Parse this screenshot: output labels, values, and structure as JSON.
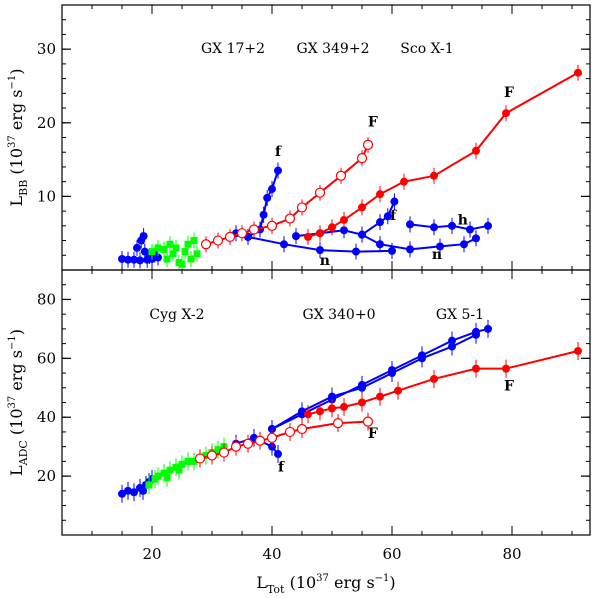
{
  "chart_data": {
    "type": "scatter",
    "x_axis": {
      "label": "L",
      "label_sub": "Tot",
      "label_rest": " (10",
      "label_sup": "37",
      "label_units": " erg s",
      "label_units_sup": "−1",
      "label_close": ")",
      "range": [
        5,
        93
      ],
      "ticks": [
        20,
        40,
        60,
        80
      ]
    },
    "panels": [
      {
        "id": "top",
        "ylabel": "L",
        "ylabel_sub": "BB",
        "ylabel_rest": " (10",
        "ylabel_sup": "37",
        "ylabel_units": " erg s",
        "ylabel_units_sup": "−1",
        "ylabel_close": ")",
        "yrange": [
          0,
          36
        ],
        "yticks": [
          10,
          20,
          30
        ],
        "source_labels": [
          "GX 17+2",
          "GX 349+2",
          "Sco X-1"
        ],
        "annotations": [
          {
            "text": "f",
            "x": 41,
            "y": 15.5
          },
          {
            "text": "F",
            "x": 56.8,
            "y": 19.5
          },
          {
            "text": "F",
            "x": 79.5,
            "y": 23.5
          },
          {
            "text": "f",
            "x": 60.2,
            "y": 6.8
          },
          {
            "text": "h",
            "x": 71.8,
            "y": 6.2
          },
          {
            "text": "n",
            "x": 48.8,
            "y": 0.7
          },
          {
            "text": "n",
            "x": 67.5,
            "y": 1.5
          }
        ],
        "series": [
          {
            "name": "Cyg X-2",
            "color": "#0000ff",
            "marker": "filled-circle",
            "connected": false,
            "points": [
              [
                15,
                1.5
              ],
              [
                16,
                1.4
              ],
              [
                17,
                1.4
              ],
              [
                18,
                1.3
              ],
              [
                17.5,
                3
              ],
              [
                18.2,
                4
              ],
              [
                18.6,
                4.6
              ],
              [
                18.8,
                2.5
              ],
              [
                19.2,
                1.4
              ],
              [
                20,
                1.5
              ],
              [
                20.5,
                2.1
              ],
              [
                21,
                1.7
              ],
              [
                19.6,
                1.9
              ]
            ]
          },
          {
            "name": "GX 340+0",
            "color": "#00ff00",
            "marker": "filled-square",
            "connected": false,
            "points": [
              [
                20,
                2.5
              ],
              [
                21,
                3
              ],
              [
                22,
                2.8
              ],
              [
                22.5,
                1.5
              ],
              [
                23,
                3.5
              ],
              [
                24,
                3
              ],
              [
                24.5,
                1
              ],
              [
                25,
                0.8
              ],
              [
                25.5,
                2.5
              ],
              [
                26,
                3.5
              ],
              [
                27,
                4
              ],
              [
                26.5,
                1.5
              ],
              [
                27.5,
                2.2
              ],
              [
                23.5,
                2.2
              ]
            ]
          },
          {
            "name": "GX 17+2",
            "color": "#0000ff",
            "marker": "filled-circle",
            "connected": true,
            "points": [
              [
                34,
                5
              ],
              [
                36,
                4.5
              ],
              [
                38,
                5.5
              ],
              [
                38.6,
                7.5
              ],
              [
                39.2,
                9.8
              ],
              [
                40,
                11
              ],
              [
                41,
                13.5
              ]
            ]
          },
          {
            "name": "GX 17+2 normal branch",
            "color": "#0000ff",
            "marker": "filled-circle",
            "connected": true,
            "points": [
              [
                36,
                4.5
              ],
              [
                42,
                3.5
              ],
              [
                48,
                2.7
              ],
              [
                54,
                2.5
              ],
              [
                60,
                2.6
              ]
            ]
          },
          {
            "name": "GX 349+2",
            "color": "#0000ff",
            "marker": "filled-circle",
            "connected": true,
            "points": [
              [
                44,
                4.6
              ],
              [
                48,
                5
              ],
              [
                52,
                5.4
              ],
              [
                55,
                4.8
              ],
              [
                58,
                6.5
              ],
              [
                59.3,
                7.3
              ],
              [
                60.4,
                9.3
              ]
            ]
          },
          {
            "name": "GX 349+2 normal branch",
            "color": "#0000ff",
            "marker": "filled-circle",
            "connected": true,
            "points": [
              [
                55,
                4.8
              ],
              [
                58,
                3.5
              ],
              [
                63,
                2.8
              ],
              [
                68,
                3.2
              ],
              [
                72,
                3.5
              ],
              [
                74,
                4.3
              ]
            ]
          },
          {
            "name": "GX 349+2 horizontal branch",
            "color": "#0000ff",
            "marker": "filled-circle",
            "connected": true,
            "points": [
              [
                63,
                6.2
              ],
              [
                67,
                5.8
              ],
              [
                70,
                6
              ],
              [
                73,
                5.5
              ],
              [
                76,
                6
              ]
            ]
          },
          {
            "name": "GX 340+0",
            "color": "#ff0000",
            "marker": "open-circle",
            "connected": true,
            "points": [
              [
                29,
                3.5
              ],
              [
                31,
                4
              ],
              [
                33,
                4.5
              ],
              [
                35,
                5
              ],
              [
                37,
                5.5
              ],
              [
                40,
                6
              ],
              [
                43,
                7
              ],
              [
                45,
                8.5
              ],
              [
                48,
                10.5
              ],
              [
                51.5,
                12.8
              ],
              [
                55,
                15.2
              ],
              [
                56,
                17
              ]
            ]
          },
          {
            "name": "GX 5-1",
            "color": "#ff0000",
            "marker": "filled-circle",
            "connected": true,
            "points": [
              [
                46,
                4.5
              ],
              [
                48,
                5
              ],
              [
                50,
                5.8
              ],
              [
                52,
                6.8
              ],
              [
                55,
                8.5
              ],
              [
                58,
                10.3
              ],
              [
                62,
                12
              ],
              [
                67,
                12.8
              ],
              [
                74,
                16.2
              ],
              [
                79,
                21.3
              ],
              [
                91,
                26.8
              ]
            ]
          }
        ]
      },
      {
        "id": "bottom",
        "ylabel": "L",
        "ylabel_sub": "ADC",
        "ylabel_rest": " (10",
        "ylabel_sup": "37",
        "ylabel_units": " erg s",
        "ylabel_units_sup": "−1",
        "ylabel_close": ")",
        "yrange": [
          0,
          90
        ],
        "yticks": [
          20,
          40,
          60,
          80
        ],
        "source_labels": [
          "Cyg X-2",
          "GX 340+0",
          "GX 5-1"
        ],
        "annotations": [
          {
            "text": "F",
            "x": 79.5,
            "y": 49
          },
          {
            "text": "F",
            "x": 56.8,
            "y": 33
          },
          {
            "text": "f",
            "x": 41.5,
            "y": 21.5
          }
        ],
        "series": [
          {
            "name": "Cyg X-2",
            "color": "#0000ff",
            "marker": "filled-circle",
            "connected": false,
            "points": [
              [
                15,
                14
              ],
              [
                16,
                15
              ],
              [
                17,
                14.5
              ],
              [
                18,
                16
              ],
              [
                19,
                17
              ],
              [
                19.5,
                18
              ],
              [
                18.5,
                15
              ],
              [
                20,
                19
              ]
            ]
          },
          {
            "name": "GX 340+0",
            "color": "#00ff00",
            "marker": "filled-square",
            "connected": false,
            "points": [
              [
                19.5,
                17
              ],
              [
                20.5,
                19
              ],
              [
                21,
                20
              ],
              [
                22,
                21
              ],
              [
                23,
                22
              ],
              [
                24,
                23
              ],
              [
                25,
                24
              ],
              [
                26,
                25
              ],
              [
                27,
                25
              ],
              [
                28,
                26
              ],
              [
                29,
                27
              ],
              [
                30,
                28
              ],
              [
                31,
                29
              ],
              [
                32,
                30
              ],
              [
                22.5,
                19.5
              ],
              [
                24.5,
                22
              ]
            ]
          },
          {
            "name": "GX 17+2",
            "color": "#0000ff",
            "marker": "filled-circle",
            "connected": true,
            "points": [
              [
                34,
                31
              ],
              [
                37,
                33
              ],
              [
                40,
                30
              ],
              [
                41,
                27.5
              ]
            ]
          },
          {
            "name": "GX 349+2 upper",
            "color": "#0000ff",
            "marker": "filled-circle",
            "connected": true,
            "points": [
              [
                40,
                36
              ],
              [
                45,
                41
              ],
              [
                50,
                46
              ],
              [
                55,
                51
              ],
              [
                60,
                56
              ],
              [
                65,
                61
              ],
              [
                70,
                66
              ],
              [
                74,
                69
              ],
              [
                76,
                70
              ]
            ]
          },
          {
            "name": "GX 349+2 lower",
            "color": "#0000ff",
            "marker": "filled-circle",
            "connected": true,
            "points": [
              [
                40,
                36
              ],
              [
                45,
                42
              ],
              [
                50,
                47
              ],
              [
                55,
                50
              ],
              [
                60,
                55
              ],
              [
                65,
                60
              ],
              [
                70,
                64
              ],
              [
                74,
                68
              ]
            ]
          },
          {
            "name": "GX 340+0",
            "color": "#ff0000",
            "marker": "open-circle",
            "connected": true,
            "points": [
              [
                28,
                26
              ],
              [
                30,
                27
              ],
              [
                32,
                28
              ],
              [
                34,
                30
              ],
              [
                36,
                31
              ],
              [
                38,
                32
              ],
              [
                40,
                33
              ],
              [
                43,
                35
              ],
              [
                45,
                36
              ],
              [
                51,
                38
              ],
              [
                56,
                38.5
              ]
            ]
          },
          {
            "name": "GX 5-1",
            "color": "#ff0000",
            "marker": "filled-circle",
            "connected": true,
            "points": [
              [
                46,
                41
              ],
              [
                48,
                42
              ],
              [
                50,
                43
              ],
              [
                52,
                43.5
              ],
              [
                55,
                45
              ],
              [
                58,
                47
              ],
              [
                61,
                49
              ],
              [
                67,
                53
              ],
              [
                74,
                56.5
              ],
              [
                79,
                56.5
              ],
              [
                91,
                62.5
              ]
            ]
          }
        ]
      }
    ]
  }
}
